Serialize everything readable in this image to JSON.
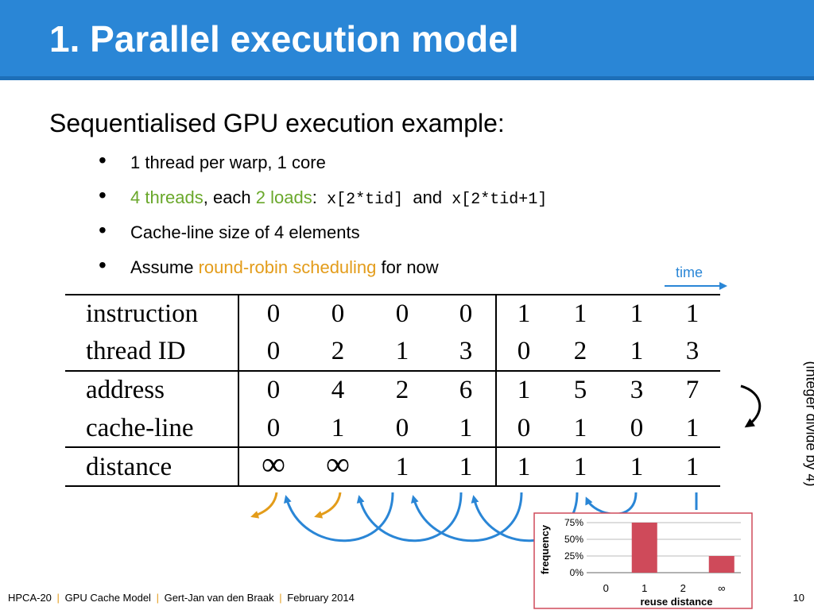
{
  "slide": {
    "title": "1. Parallel execution model",
    "subtitle": "Sequentialised GPU execution example:",
    "bullets": {
      "b1": "1 thread per warp, 1 core",
      "b2_threads": "4 threads",
      "b2_each": ", each ",
      "b2_loads": "2 loads",
      "b2_colon": ":",
      "b2_code1": "x[2*tid]",
      "b2_and": "and",
      "b2_code2": "x[2*tid+1]",
      "b3": "Cache-line size of 4 elements",
      "b4_pre": "Assume ",
      "b4_rr": "round-robin scheduling",
      "b4_post": " for now"
    },
    "time_label": "time",
    "side_note": "(integer divide by 4)"
  },
  "table": {
    "rows": [
      {
        "label": "instruction",
        "cells": [
          "0",
          "0",
          "0",
          "0",
          "1",
          "1",
          "1",
          "1"
        ]
      },
      {
        "label": "thread ID",
        "cells": [
          "0",
          "2",
          "1",
          "3",
          "0",
          "2",
          "1",
          "3"
        ]
      },
      {
        "label": "address",
        "cells": [
          "0",
          "4",
          "2",
          "6",
          "1",
          "5",
          "3",
          "7"
        ]
      },
      {
        "label": "cache-line",
        "cells": [
          "0",
          "1",
          "0",
          "1",
          "0",
          "1",
          "0",
          "1"
        ]
      },
      {
        "label": "distance",
        "cells": [
          "∞",
          "∞",
          "1",
          "1",
          "1",
          "1",
          "1",
          "1"
        ]
      }
    ]
  },
  "chart_data": {
    "type": "bar",
    "categories": [
      "0",
      "1",
      "2",
      "∞"
    ],
    "values": [
      0,
      75,
      0,
      25
    ],
    "xlabel": "reuse distance",
    "ylabel": "frequency",
    "ylim": [
      0,
      75
    ],
    "yticks": [
      "75%",
      "50%",
      "25%",
      "0%"
    ],
    "grid": true,
    "bar_color": "#cf4a5a",
    "border_color": "#cf4a5a"
  },
  "footer": {
    "conf": "HPCA-20",
    "topic": "GPU Cache Model",
    "author": "Gert-Jan van den Braak",
    "date": "February 2014",
    "sep": "|",
    "page": "10"
  },
  "colors": {
    "title_bar": "#2a86d6",
    "accent_green": "#6aa82b",
    "accent_orange": "#e39c1a",
    "arrow_blue": "#2a86d6"
  }
}
